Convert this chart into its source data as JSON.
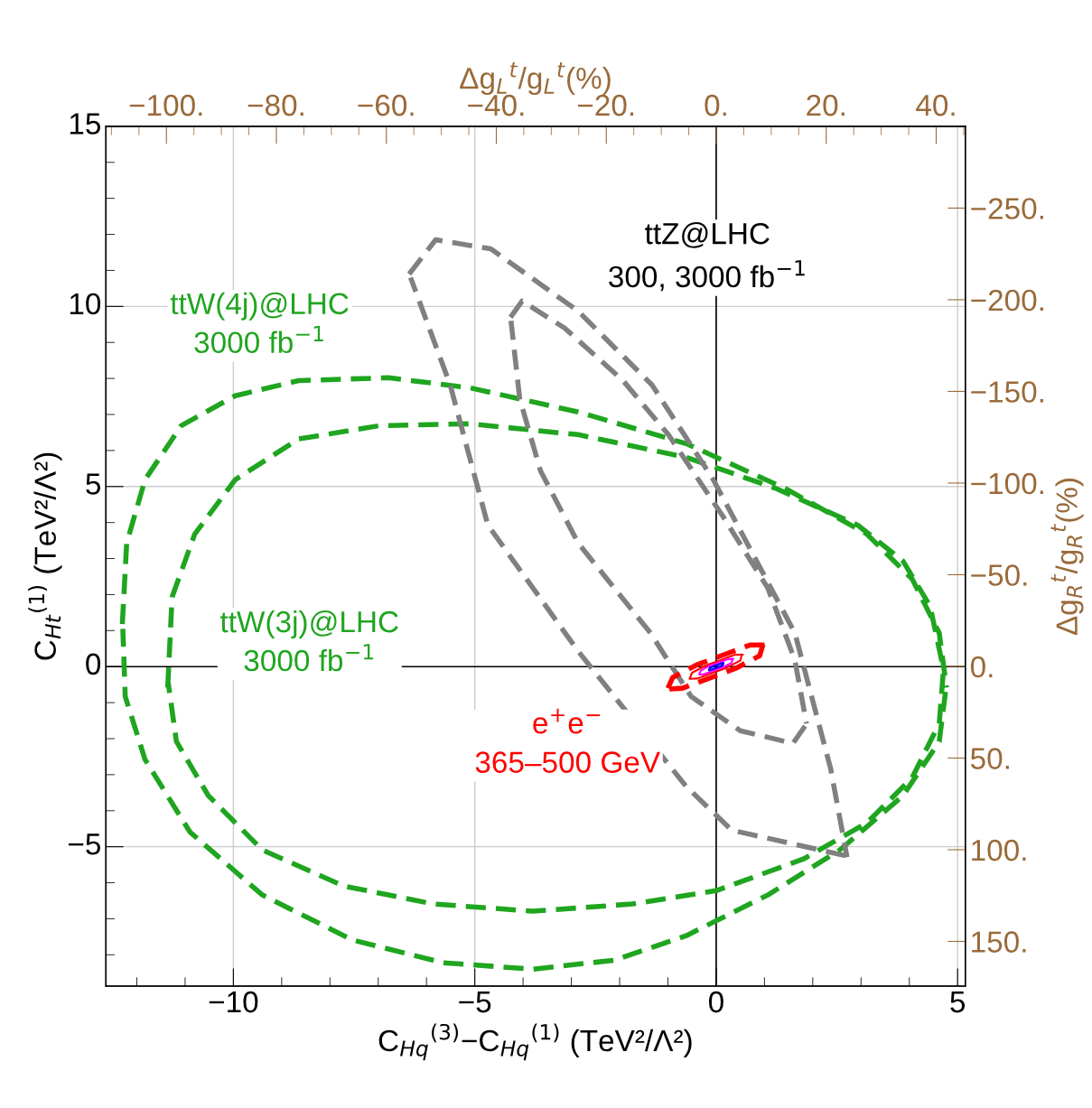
{
  "chart_data": {
    "type": "line",
    "xlabel": "C$_{Hq}$$^{(3)}$−C$_{Hq}$$^{(1)}$ (TeV²/Λ²)",
    "ylabel": "C$_{Ht}$$^{(1)}$ (TeV²/Λ²)",
    "x2label": "Δg$_{L}$$^{t}$/g$_{L}$$^{t}$(%)",
    "y2label": "Δg$_{R}$$^{t}$/g$_{R}$$^{t}$(%)",
    "xlim": [
      -12.64,
      5.16
    ],
    "xticks": [
      {
        "value": -10,
        "label": "−10"
      },
      {
        "value": -5,
        "label": "−5"
      },
      0,
      5
    ],
    "ylim": [
      -8.87,
      15
    ],
    "yticks": [
      {
        "value": -5,
        "label": "−5"
      },
      0,
      5,
      10,
      15
    ],
    "x2lim": [
      -111,
      45.3
    ],
    "x2ticks": [
      {
        "value": -100,
        "label": "−100."
      },
      {
        "value": -80,
        "label": "−80."
      },
      {
        "value": -60,
        "label": "−60."
      },
      {
        "value": -40,
        "label": "−40."
      },
      {
        "value": -20,
        "label": "−20."
      },
      {
        "value": 0,
        "label": "0."
      },
      {
        "value": 20,
        "label": "20."
      },
      {
        "value": 40,
        "label": "40."
      }
    ],
    "y2lim": [
      174.4,
      -294.6
    ],
    "y2ticks": [
      {
        "value": -250,
        "label": "−250."
      },
      {
        "value": -200,
        "label": "−200."
      },
      {
        "value": -150,
        "label": "−150."
      },
      {
        "value": -100,
        "label": "−100."
      },
      {
        "value": -50,
        "label": "−50."
      },
      {
        "value": 0,
        "label": "0."
      },
      {
        "value": 50,
        "label": "50."
      },
      {
        "value": 100,
        "label": "100."
      },
      {
        "value": 150,
        "label": "150."
      }
    ],
    "grid": true,
    "marker": "none",
    "series": [
      {
        "color": "#1fa51f",
        "line_style": "dashed",
        "x": [
          -12.3,
          -12.21,
          -11.83,
          -11.08,
          -9.96,
          -8.65,
          -6.79,
          -5.1,
          -2.86,
          -0.62,
          1.44,
          3.12,
          4.06,
          4.62,
          4.77
        ],
        "values": [
          1.18,
          3.43,
          5.19,
          6.69,
          7.52,
          7.94,
          8.02,
          7.74,
          7.07,
          6.19,
          4.94,
          3.68,
          2.43,
          0.93,
          -0.58
        ]
      },
      {
        "color": "#1fa51f",
        "line_style": "dashed",
        "x": [
          4.75,
          4.62,
          3.87,
          2.56,
          1.07,
          -0.62,
          -2.11,
          -3.79,
          -5.66,
          -7.53,
          -9.4,
          -10.9,
          -11.83,
          -12.24,
          -12.29
        ],
        "values": [
          -0.7,
          -2.08,
          -3.58,
          -5.09,
          -6.34,
          -7.47,
          -8.15,
          -8.4,
          -8.22,
          -7.59,
          -6.34,
          -4.59,
          -2.58,
          -0.83,
          1.05
        ]
      },
      {
        "color": "#1fa51f",
        "line_style": "dashed",
        "x": [
          -11.36,
          -11.27,
          -10.8,
          -9.96,
          -8.65,
          -6.97,
          -5.1,
          -2.86,
          -0.62,
          1.25,
          2.93,
          3.87,
          4.43,
          4.71
        ],
        "values": [
          -0.58,
          1.93,
          3.68,
          5.19,
          6.32,
          6.69,
          6.74,
          6.44,
          5.81,
          4.94,
          3.93,
          2.93,
          1.68,
          -0.08
        ]
      },
      {
        "color": "#1fa51f",
        "line_style": "dashed",
        "x": [
          4.7,
          4.62,
          4.06,
          3.12,
          1.81,
          0,
          -1.74,
          -3.79,
          -5.85,
          -7.72,
          -9.4,
          -10.52,
          -11.18,
          -11.35
        ],
        "values": [
          -0.2,
          -1.58,
          -3.08,
          -4.34,
          -5.34,
          -6.22,
          -6.59,
          -6.79,
          -6.59,
          -6.09,
          -5.09,
          -3.58,
          -2.08,
          -0.45
        ]
      },
      {
        "color": "#808080",
        "line_style": "dashed",
        "x": [
          -6.36,
          -5.81,
          -4.67,
          -2.86,
          -1.33,
          -0.06,
          1.63,
          2.37,
          2.71
        ],
        "values": [
          10.9,
          11.85,
          11.6,
          9.87,
          7.82,
          5.19,
          0.93,
          -2.83,
          -5.29
        ]
      },
      {
        "color": "#808080",
        "line_style": "dashed",
        "x": [
          2.68,
          0.32,
          -0.62,
          -2.86,
          -4.73,
          -5.51,
          -6.33
        ],
        "values": [
          -5.25,
          -4.54,
          -3.33,
          0.43,
          3.93,
          7.82,
          10.8
        ]
      },
      {
        "color": "#808080",
        "line_style": "dashed",
        "x": [
          -4.26,
          -4.02,
          -3.14,
          -1.93,
          -0.99,
          0.13,
          1.07,
          1.63,
          1.87
        ],
        "values": [
          9.7,
          10.15,
          9.4,
          7.94,
          6.44,
          4.19,
          2.18,
          0.18,
          -1.58
        ]
      },
      {
        "color": "#808080",
        "line_style": "dashed",
        "x": [
          1.84,
          1.59,
          0.5,
          -0.52,
          -1.36,
          -2.86,
          -3.64,
          -4.07,
          -4.25
        ],
        "values": [
          -1.65,
          -2.13,
          -1.78,
          -0.83,
          0.93,
          3.43,
          5.44,
          7.44,
          9.6
        ]
      },
      {
        "color": "#ff0000",
        "line_style": "dashed",
        "x": [
          1.0,
          0.7,
          0.2,
          -0.4,
          -0.9,
          -1.0
        ],
        "values": [
          0.6,
          0.6,
          0.35,
          0.05,
          -0.3,
          -0.6
        ]
      },
      {
        "color": "#ff0000",
        "line_style": "dashed",
        "x": [
          -0.97,
          -0.7,
          -0.2,
          0.4,
          0.9,
          0.97
        ],
        "values": [
          -0.62,
          -0.6,
          -0.35,
          -0.05,
          0.3,
          0.62
        ]
      },
      {
        "color": "#ff0000",
        "line_style": "solid",
        "x": [
          0.55,
          0.39,
          0.11,
          -0.22,
          -0.5,
          -0.55
        ],
        "values": [
          0.33,
          0.33,
          0.19,
          0.03,
          -0.17,
          -0.33
        ]
      },
      {
        "color": "#ff0000",
        "line_style": "solid",
        "x": [
          -0.53,
          -0.39,
          -0.11,
          0.22,
          0.5,
          0.53
        ],
        "values": [
          -0.34,
          -0.33,
          -0.19,
          -0.03,
          0.17,
          0.34
        ]
      },
      {
        "color": "#ff00ff",
        "line_style": "solid",
        "x": [
          0.35,
          0.25,
          0.07,
          -0.14,
          -0.32,
          -0.35
        ],
        "values": [
          0.21,
          0.21,
          0.12,
          0.02,
          -0.11,
          -0.21
        ]
      },
      {
        "color": "#ff00ff",
        "line_style": "solid",
        "x": [
          -0.34,
          -0.25,
          -0.07,
          0.14,
          0.32,
          0.34
        ],
        "values": [
          -0.22,
          -0.21,
          -0.12,
          -0.02,
          0.11,
          0.22
        ]
      },
      {
        "color": "#0000ff",
        "line_style": "solid",
        "x": [
          0.15,
          0.11,
          0.03,
          -0.06,
          -0.14,
          -0.15
        ],
        "values": [
          0.09,
          0.09,
          0.05,
          0.01,
          -0.05,
          -0.09
        ]
      },
      {
        "color": "#0000ff",
        "line_style": "solid",
        "x": [
          -0.14,
          -0.11,
          -0.03,
          0.06,
          0.14,
          0.14
        ],
        "values": [
          -0.1,
          -0.09,
          -0.05,
          -0.01,
          0.05,
          0.1
        ]
      }
    ],
    "annotations": [
      "ttW(4j)@LHC\n3000 fb$^{−1}$",
      "ttW(3j)@LHC\n3000 fb$^{−1}$",
      "ttZ@LHC\n300, 3000 fb$^{−1}$",
      "e$^{+}$e$^{−}$\n365–500 GeV"
    ]
  }
}
